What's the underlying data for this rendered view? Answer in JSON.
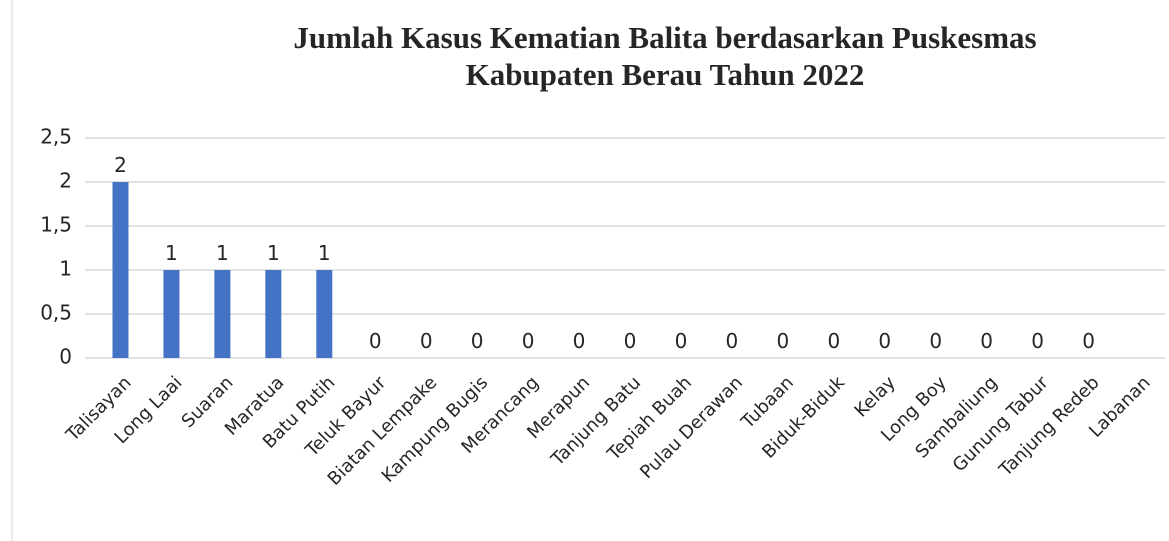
{
  "chart_data": {
    "type": "bar",
    "title": [
      "Jumlah Kasus Kematian Balita berdasarkan Puskesmas",
      "Kabupaten Berau Tahun 2022"
    ],
    "categories": [
      "Talisayan",
      "Long Laai",
      "Suaran",
      "Maratua",
      "Batu Putih",
      "Teluk Bayur",
      "Biatan Lempake",
      "Kampung Bugis",
      "Merancang",
      "Merapun",
      "Tanjung Batu",
      "Tepiah Buah",
      "Pulau Derawan",
      "Tubaan",
      "Biduk-Biduk",
      "Kelay",
      "Long Boy",
      "Sambaliung",
      "Gunung Tabur",
      "Tanjung Redeb",
      "Labanan"
    ],
    "values": [
      2,
      1,
      1,
      1,
      1,
      0,
      0,
      0,
      0,
      0,
      0,
      0,
      0,
      0,
      0,
      0,
      0,
      0,
      0,
      0,
      null
    ],
    "color": "#4472c4",
    "ylim": [
      0,
      2.5
    ],
    "yticks": [
      0,
      {
        "value": 0.5,
        "label": "0,5"
      },
      1,
      {
        "value": 1.5,
        "label": "1,5"
      },
      2,
      {
        "value": 2.5,
        "label": "2,5"
      }
    ],
    "grid": true
  }
}
